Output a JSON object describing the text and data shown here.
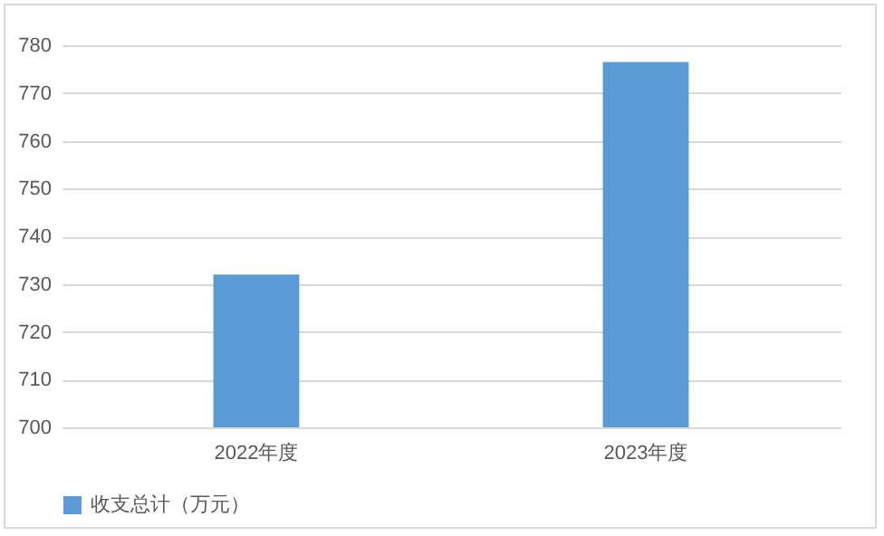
{
  "chart_data": {
    "type": "bar",
    "categories": [
      "2022年度",
      "2023年度"
    ],
    "series": [
      {
        "name": "收支总计（万元）",
        "color": "#5b9bd5",
        "values": [
          732,
          776.5
        ]
      }
    ],
    "ylim": [
      700,
      780
    ],
    "yticks": [
      700,
      710,
      720,
      730,
      740,
      750,
      760,
      770,
      780
    ],
    "grid": "y",
    "legend": "bottom"
  }
}
